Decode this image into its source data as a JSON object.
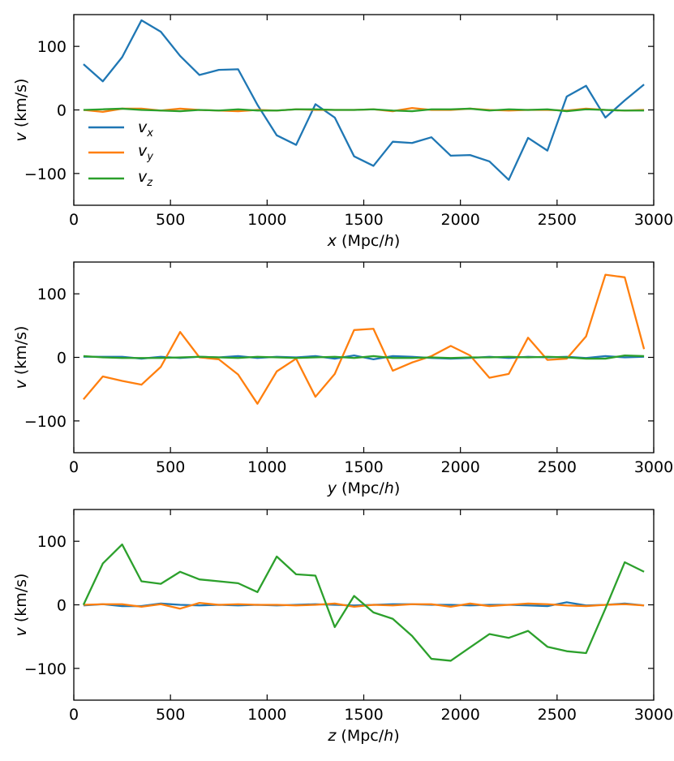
{
  "colors": {
    "vx": "#1f77b4",
    "vy": "#ff7f0e",
    "vz": "#2ca02c"
  },
  "legend": [
    {
      "series": "vx",
      "base": "v",
      "sub": "x"
    },
    {
      "series": "vy",
      "base": "v",
      "sub": "y"
    },
    {
      "series": "vz",
      "base": "v",
      "sub": "z"
    }
  ],
  "chart_data": [
    {
      "type": "line",
      "xlabel": {
        "var": "x",
        "pre": " (Mpc/",
        "h": "h",
        "post": ")"
      },
      "ylabel": {
        "var": "v",
        "unit": " (km/s)"
      },
      "xlim": [
        0,
        3000
      ],
      "ylim": [
        -150,
        150
      ],
      "xticks": [
        0,
        500,
        1000,
        1500,
        2000,
        2500,
        3000
      ],
      "yticks": [
        -100,
        0,
        100
      ],
      "ytick_labels": [
        "−100",
        "0",
        "100"
      ],
      "x": [
        50,
        150,
        250,
        350,
        450,
        550,
        650,
        750,
        850,
        950,
        1050,
        1150,
        1250,
        1350,
        1450,
        1550,
        1650,
        1750,
        1850,
        1950,
        2050,
        2150,
        2250,
        2350,
        2450,
        2550,
        2650,
        2750,
        2850,
        2950
      ],
      "series": [
        {
          "name": "vx",
          "values": [
            72,
            45,
            83,
            141,
            123,
            85,
            55,
            63,
            64,
            8,
            -40,
            -55,
            9,
            -12,
            -73,
            -88,
            -50,
            -52,
            -43,
            -72,
            -71,
            -81,
            -110,
            -44,
            -64,
            21,
            38,
            -12,
            15,
            40
          ]
        },
        {
          "name": "vy",
          "values": [
            0,
            -3,
            2,
            2,
            -1,
            2,
            0,
            -1,
            -2,
            0,
            -1,
            1,
            0,
            0,
            0,
            1,
            -2,
            3,
            0,
            0,
            2,
            0,
            -1,
            0,
            0,
            -1,
            2,
            0,
            -1,
            0
          ]
        },
        {
          "name": "vz",
          "values": [
            0,
            1,
            2,
            0,
            -1,
            -2,
            0,
            -1,
            1,
            -1,
            -1,
            1,
            1,
            0,
            0,
            1,
            -1,
            -2,
            1,
            1,
            2,
            -1,
            1,
            0,
            1,
            -2,
            1,
            0,
            -1,
            -1
          ]
        }
      ],
      "legend_location": "center-left"
    },
    {
      "type": "line",
      "xlabel": {
        "var": "y",
        "pre": " (Mpc/",
        "h": "h",
        "post": ")"
      },
      "ylabel": {
        "var": "v",
        "unit": " (km/s)"
      },
      "xlim": [
        0,
        3000
      ],
      "ylim": [
        -150,
        150
      ],
      "xticks": [
        0,
        500,
        1000,
        1500,
        2000,
        2500,
        3000
      ],
      "yticks": [
        -100,
        0,
        100
      ],
      "ytick_labels": [
        "−100",
        "0",
        "100"
      ],
      "x": [
        50,
        150,
        250,
        350,
        450,
        550,
        650,
        750,
        850,
        950,
        1050,
        1150,
        1250,
        1350,
        1450,
        1550,
        1650,
        1750,
        1850,
        1950,
        2050,
        2150,
        2250,
        2350,
        2450,
        2550,
        2650,
        2750,
        2850,
        2950
      ],
      "series": [
        {
          "name": "vx",
          "values": [
            1,
            1,
            1,
            -2,
            1,
            -1,
            1,
            0,
            2,
            -1,
            1,
            0,
            2,
            -2,
            3,
            -3,
            2,
            1,
            -1,
            -2,
            -1,
            1,
            -1,
            1,
            0,
            1,
            -1,
            2,
            0,
            1
          ]
        },
        {
          "name": "vy",
          "values": [
            -66,
            -30,
            -37,
            -43,
            -15,
            40,
            0,
            -3,
            -27,
            -73,
            -22,
            -2,
            -62,
            -26,
            43,
            45,
            -21,
            -8,
            2,
            18,
            3,
            -32,
            -26,
            31,
            -4,
            -2,
            33,
            130,
            126,
            13
          ]
        },
        {
          "name": "vz",
          "values": [
            2,
            0,
            -1,
            -1,
            -1,
            0,
            1,
            0,
            -1,
            1,
            0,
            -1,
            0,
            1,
            -1,
            2,
            -1,
            -1,
            0,
            -1,
            0,
            0,
            1,
            0,
            1,
            0,
            -2,
            -2,
            3,
            2
          ]
        }
      ]
    },
    {
      "type": "line",
      "xlabel": {
        "var": "z",
        "pre": " (Mpc/",
        "h": "h",
        "post": ")"
      },
      "ylabel": {
        "var": "v",
        "unit": " (km/s)"
      },
      "xlim": [
        0,
        3000
      ],
      "ylim": [
        -150,
        150
      ],
      "xticks": [
        0,
        500,
        1000,
        1500,
        2000,
        2500,
        3000
      ],
      "yticks": [
        -100,
        0,
        100
      ],
      "ytick_labels": [
        "−100",
        "0",
        "100"
      ],
      "x": [
        50,
        150,
        250,
        350,
        450,
        550,
        650,
        750,
        850,
        950,
        1050,
        1150,
        1250,
        1350,
        1450,
        1550,
        1650,
        1750,
        1850,
        1950,
        2050,
        2150,
        2250,
        2350,
        2450,
        2550,
        2650,
        2750,
        2850,
        2950
      ],
      "series": [
        {
          "name": "vx",
          "values": [
            -1,
            1,
            -2,
            -2,
            2,
            0,
            -1,
            0,
            -1,
            0,
            -1,
            0,
            1,
            0,
            -1,
            0,
            1,
            1,
            0,
            0,
            -1,
            0,
            0,
            -1,
            -2,
            4,
            -1,
            0,
            2,
            -1
          ]
        },
        {
          "name": "vy",
          "values": [
            0,
            1,
            1,
            -3,
            1,
            -6,
            3,
            0,
            1,
            0,
            0,
            -1,
            0,
            2,
            -3,
            0,
            -1,
            1,
            1,
            -3,
            2,
            -2,
            0,
            2,
            1,
            -1,
            -2,
            0,
            1,
            -1
          ]
        },
        {
          "name": "vz",
          "values": [
            0,
            65,
            95,
            37,
            33,
            52,
            40,
            37,
            34,
            20,
            76,
            48,
            46,
            -35,
            14,
            -12,
            -22,
            -49,
            -85,
            -88,
            -67,
            -46,
            -52,
            -41,
            -66,
            -73,
            -76,
            -6,
            67,
            52
          ]
        }
      ]
    }
  ]
}
